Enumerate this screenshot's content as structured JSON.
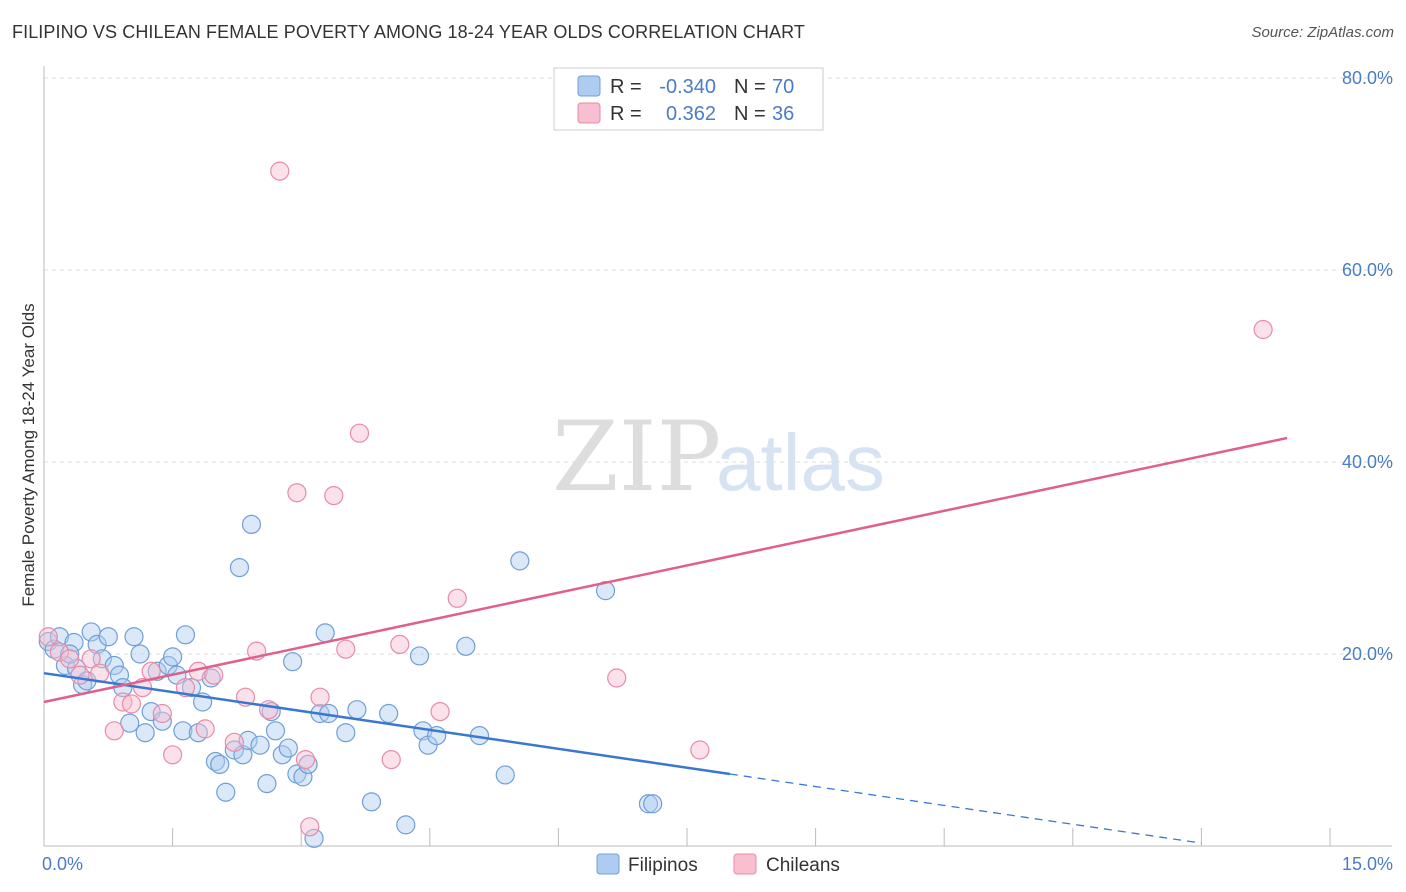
{
  "header": {
    "title": "FILIPINO VS CHILEAN FEMALE POVERTY AMONG 18-24 YEAR OLDS CORRELATION CHART",
    "source": "Source: ZipAtlas.com"
  },
  "watermark": {
    "part1": "ZIP",
    "part2": "atlas"
  },
  "colors": {
    "filipinos_fill": "#aecbf0",
    "filipinos_stroke": "#6f9fd8",
    "filipinos_line": "#3a78d0",
    "chileans_fill": "#f7bfd0",
    "chileans_stroke": "#e98aa8",
    "chileans_line": "#e0608a",
    "tick_label": "#4a7cc7",
    "grid": "#dddddd"
  },
  "legend": {
    "rows": [
      {
        "r_label": "R =",
        "r_value": "-0.340",
        "n_label": "N =",
        "n_value": "70"
      },
      {
        "r_label": "R =",
        "r_value": "0.362",
        "n_label": "N =",
        "n_value": "36"
      }
    ]
  },
  "bottom_legend": {
    "items": [
      "Filipinos",
      "Chileans"
    ]
  },
  "chart_data": {
    "type": "scatter",
    "title": "FILIPINO VS CHILEAN FEMALE POVERTY AMONG 18-24 YEAR OLDS CORRELATION CHART",
    "xlabel": "",
    "ylabel": "Female Poverty Among 18-24 Year Olds",
    "xlim": [
      0,
      15
    ],
    "ylim": [
      0,
      80
    ],
    "x_tick_labels": [
      "0.0%",
      "15.0%"
    ],
    "y_tick_labels": [
      "20.0%",
      "40.0%",
      "60.0%",
      "80.0%"
    ],
    "y_ticks": [
      20,
      40,
      60,
      80
    ],
    "grid": true,
    "legend_position": "top-center",
    "series": [
      {
        "name": "Filipinos",
        "r": -0.34,
        "n": 70,
        "trend": {
          "x_start": 0,
          "y_start": 18.0,
          "x_solid_end": 8.0,
          "y_solid_end": 7.5,
          "x_end": 13.5,
          "y_end": 0.3
        },
        "points": [
          [
            0.05,
            21.3
          ],
          [
            0.12,
            20.5
          ],
          [
            0.18,
            21.8
          ],
          [
            0.25,
            18.8
          ],
          [
            0.35,
            21.2
          ],
          [
            0.38,
            18.5
          ],
          [
            0.45,
            16.8
          ],
          [
            0.5,
            17.2
          ],
          [
            0.55,
            22.3
          ],
          [
            0.62,
            21.0
          ],
          [
            0.68,
            19.5
          ],
          [
            0.75,
            21.8
          ],
          [
            0.82,
            18.8
          ],
          [
            0.88,
            17.8
          ],
          [
            0.92,
            16.5
          ],
          [
            1.0,
            12.8
          ],
          [
            1.05,
            21.8
          ],
          [
            1.12,
            20.0
          ],
          [
            1.18,
            11.8
          ],
          [
            1.25,
            14.0
          ],
          [
            1.32,
            18.2
          ],
          [
            1.38,
            13.0
          ],
          [
            1.45,
            18.8
          ],
          [
            1.5,
            19.7
          ],
          [
            1.55,
            17.8
          ],
          [
            1.62,
            12.0
          ],
          [
            1.65,
            22.0
          ],
          [
            1.72,
            16.5
          ],
          [
            1.8,
            11.8
          ],
          [
            1.85,
            15.0
          ],
          [
            1.95,
            17.5
          ],
          [
            2.0,
            8.8
          ],
          [
            2.05,
            8.5
          ],
          [
            2.12,
            5.6
          ],
          [
            2.22,
            10.0
          ],
          [
            2.28,
            29.0
          ],
          [
            2.32,
            9.5
          ],
          [
            2.38,
            11.0
          ],
          [
            2.42,
            33.5
          ],
          [
            2.52,
            10.5
          ],
          [
            2.6,
            6.5
          ],
          [
            2.65,
            14.0
          ],
          [
            2.7,
            12.0
          ],
          [
            2.78,
            9.5
          ],
          [
            2.85,
            10.2
          ],
          [
            2.9,
            19.2
          ],
          [
            2.95,
            7.5
          ],
          [
            3.02,
            7.2
          ],
          [
            3.08,
            8.5
          ],
          [
            3.15,
            0.8
          ],
          [
            3.22,
            13.8
          ],
          [
            3.28,
            22.2
          ],
          [
            3.32,
            13.8
          ],
          [
            3.52,
            11.8
          ],
          [
            3.65,
            14.2
          ],
          [
            3.82,
            4.6
          ],
          [
            4.02,
            13.8
          ],
          [
            4.22,
            2.2
          ],
          [
            4.38,
            19.8
          ],
          [
            4.42,
            12.0
          ],
          [
            4.48,
            10.5
          ],
          [
            4.58,
            11.5
          ],
          [
            4.92,
            20.8
          ],
          [
            5.08,
            11.5
          ],
          [
            5.38,
            7.4
          ],
          [
            5.55,
            29.7
          ],
          [
            6.55,
            26.6
          ],
          [
            7.05,
            4.4
          ],
          [
            7.1,
            4.4
          ],
          [
            0.3,
            20.0
          ]
        ]
      },
      {
        "name": "Chileans",
        "r": 0.362,
        "n": 36,
        "trend": {
          "x_start": 0,
          "y_start": 15.0,
          "x_end": 14.5,
          "y_end": 42.5
        },
        "points": [
          [
            0.05,
            21.8
          ],
          [
            0.18,
            20.2
          ],
          [
            0.3,
            19.5
          ],
          [
            0.42,
            17.8
          ],
          [
            0.55,
            19.5
          ],
          [
            0.65,
            18.0
          ],
          [
            0.82,
            12.0
          ],
          [
            0.92,
            15.0
          ],
          [
            1.02,
            14.8
          ],
          [
            1.15,
            16.5
          ],
          [
            1.25,
            18.2
          ],
          [
            1.38,
            13.8
          ],
          [
            1.5,
            9.5
          ],
          [
            1.65,
            16.5
          ],
          [
            1.8,
            18.2
          ],
          [
            1.88,
            12.2
          ],
          [
            1.98,
            17.8
          ],
          [
            2.22,
            10.8
          ],
          [
            2.35,
            15.5
          ],
          [
            2.48,
            20.3
          ],
          [
            2.62,
            14.2
          ],
          [
            2.75,
            70.3
          ],
          [
            2.95,
            36.8
          ],
          [
            3.05,
            9.0
          ],
          [
            3.1,
            2.0
          ],
          [
            3.22,
            15.5
          ],
          [
            3.38,
            36.5
          ],
          [
            3.52,
            20.5
          ],
          [
            3.68,
            43.0
          ],
          [
            4.05,
            9.0
          ],
          [
            4.15,
            21.0
          ],
          [
            4.62,
            14.0
          ],
          [
            4.82,
            25.8
          ],
          [
            6.68,
            17.5
          ],
          [
            7.65,
            10.0
          ],
          [
            14.22,
            53.8
          ]
        ]
      }
    ]
  }
}
